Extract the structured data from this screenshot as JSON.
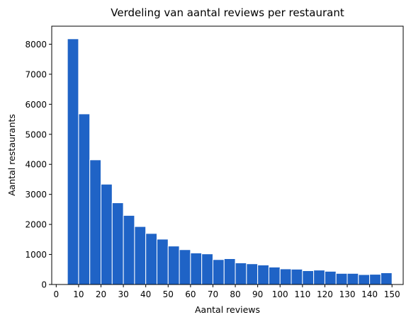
{
  "chart_data": {
    "type": "bar",
    "title": "Verdeling van aantal reviews per restaurant",
    "xlabel": "Aantal reviews",
    "ylabel": "Aantal restaurants",
    "bar_color": "#1f63c6",
    "xlim": [
      -2,
      155
    ],
    "ylim": [
      0,
      8600
    ],
    "xticks": [
      "0",
      "10",
      "20",
      "30",
      "40",
      "50",
      "60",
      "70",
      "80",
      "90",
      "100",
      "110",
      "120",
      "130",
      "140",
      "150"
    ],
    "yticks": [
      "0",
      "1000",
      "2000",
      "3000",
      "4000",
      "5000",
      "6000",
      "7000",
      "8000"
    ],
    "bin_width": 5,
    "bins": [
      {
        "start": 5,
        "value": 8180
      },
      {
        "start": 10,
        "value": 5680
      },
      {
        "start": 15,
        "value": 4150
      },
      {
        "start": 20,
        "value": 3340
      },
      {
        "start": 25,
        "value": 2720
      },
      {
        "start": 30,
        "value": 2300
      },
      {
        "start": 35,
        "value": 1930
      },
      {
        "start": 40,
        "value": 1700
      },
      {
        "start": 45,
        "value": 1510
      },
      {
        "start": 50,
        "value": 1280
      },
      {
        "start": 55,
        "value": 1160
      },
      {
        "start": 60,
        "value": 1050
      },
      {
        "start": 65,
        "value": 1020
      },
      {
        "start": 70,
        "value": 830
      },
      {
        "start": 75,
        "value": 860
      },
      {
        "start": 80,
        "value": 720
      },
      {
        "start": 85,
        "value": 690
      },
      {
        "start": 90,
        "value": 650
      },
      {
        "start": 95,
        "value": 580
      },
      {
        "start": 100,
        "value": 520
      },
      {
        "start": 105,
        "value": 510
      },
      {
        "start": 110,
        "value": 460
      },
      {
        "start": 115,
        "value": 480
      },
      {
        "start": 120,
        "value": 440
      },
      {
        "start": 125,
        "value": 370
      },
      {
        "start": 130,
        "value": 370
      },
      {
        "start": 135,
        "value": 330
      },
      {
        "start": 140,
        "value": 340
      },
      {
        "start": 145,
        "value": 390
      }
    ]
  }
}
